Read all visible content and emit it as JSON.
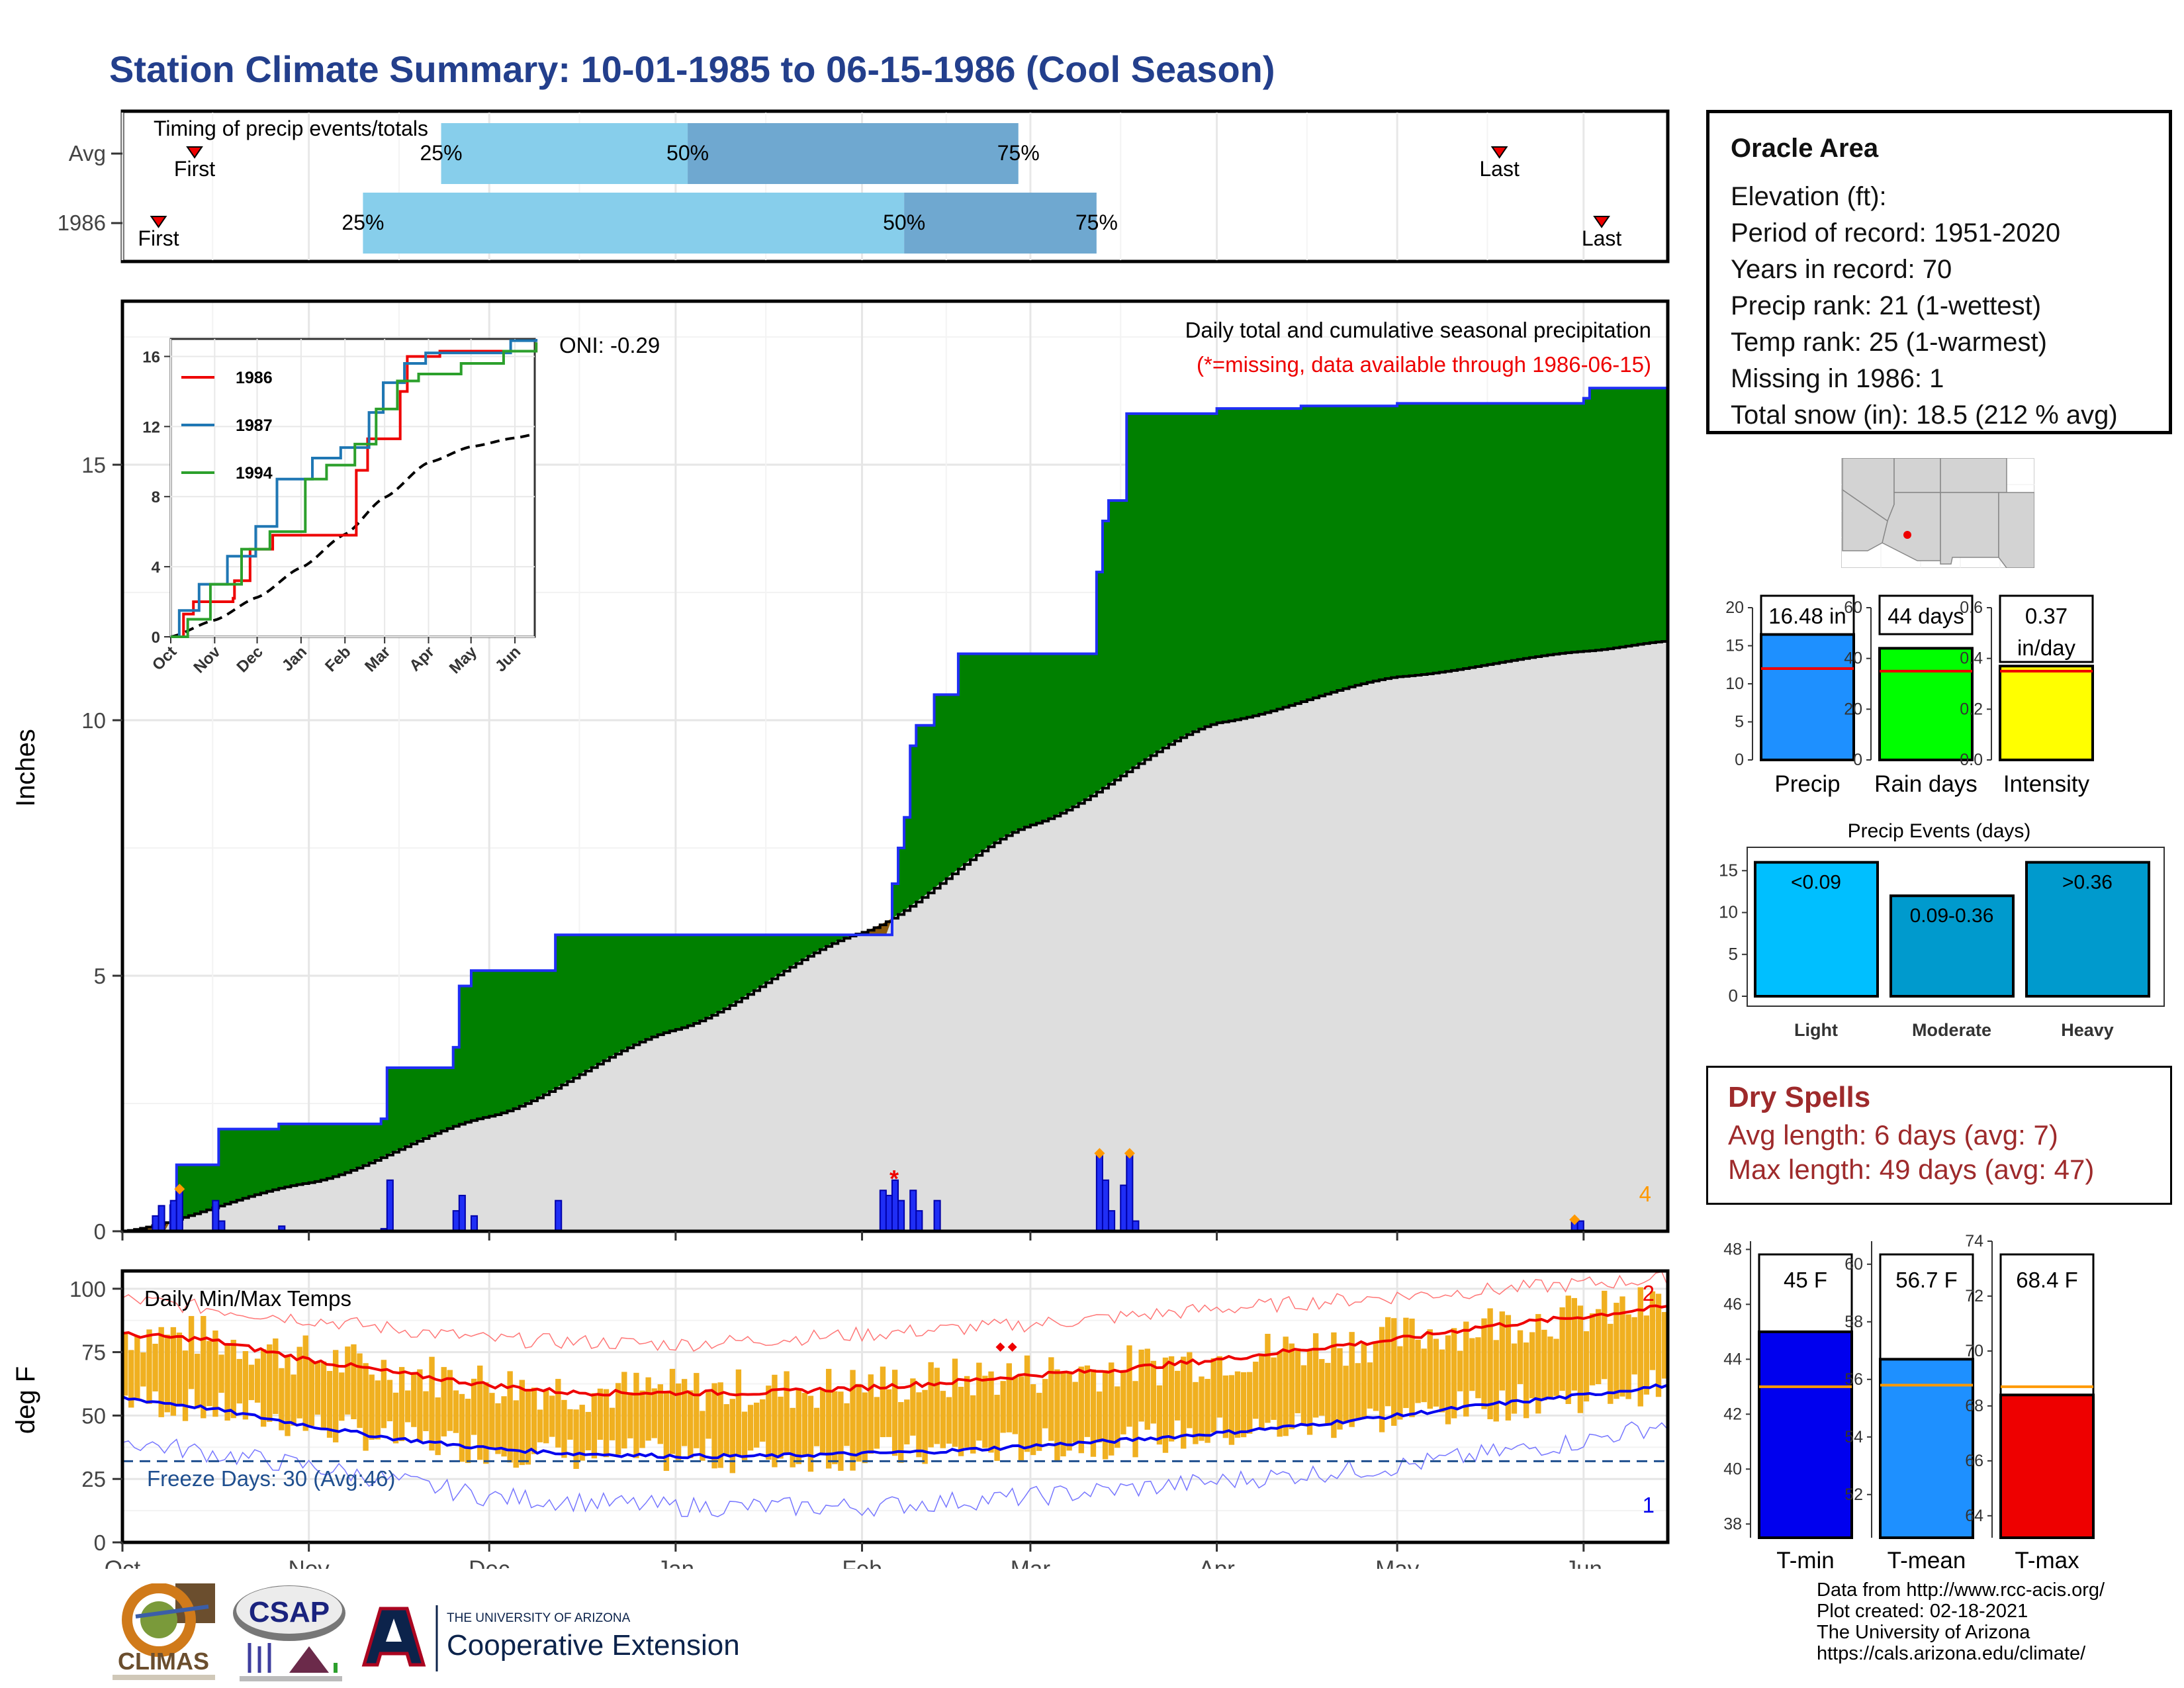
{
  "title": "Station Climate Summary: 10-01-1985 to 06-15-1986 (Cool Season)",
  "colors": {
    "title": "#233f8c",
    "precip_fill": "#008000",
    "deficit_fill": "#8b5a0e",
    "avg_area": "#dedede",
    "bar_blue": "#1f2ef5",
    "q_light": "#87ceeb",
    "q_dark": "#6fa8d0",
    "tmin": "#0000ee",
    "tmax": "#ee0000",
    "range_bar": "#f0b020",
    "bar_precip": "#1e90ff",
    "bar_raindays": "#00ff00",
    "bar_intensity": "#ffff00",
    "bar_light": "#00bfff",
    "bar_moderate": "#009acd",
    "bar_heavy": "#009acd",
    "dry_spell_text": "#9e2a2b"
  },
  "timing": {
    "label": "Timing of precip events/totals",
    "rows": [
      {
        "name": "Avg",
        "first": "First",
        "last": "Last",
        "first_date": "1985-10-13",
        "last_date": "1986-05-18",
        "q25": "1985-11-23",
        "q50": "1986-01-03",
        "q75": "1986-02-27",
        "l25": "25%",
        "l50": "50%",
        "l75": "75%"
      },
      {
        "name": "1986",
        "first": "First",
        "last": "Last",
        "first_date": "1985-10-07",
        "last_date": "1986-06-04",
        "q25": "1985-11-10",
        "q50": "1986-02-08",
        "q75": "1986-03-12",
        "l25": "25%",
        "l50": "50%",
        "l75": "75%"
      }
    ]
  },
  "precip_panel": {
    "ylabel": "Inches",
    "legend_title": "Daily total and cumulative seasonal precipitation",
    "legend_missing": "(*=missing, data available through 1986-06-15)",
    "oni": "ONI: -0.29",
    "corner_label": "4",
    "yticks": [
      "0",
      "5",
      "10",
      "15"
    ]
  },
  "inset": {
    "yticks": [
      "0",
      "4",
      "8",
      "12",
      "16"
    ],
    "xticks": [
      "Oct",
      "Nov",
      "Dec",
      "Jan",
      "Feb",
      "Mar",
      "Apr",
      "May",
      "Jun"
    ],
    "series": [
      {
        "name": "1986",
        "color": "#ee0000"
      },
      {
        "name": "1987",
        "color": "#1f77b4"
      },
      {
        "name": "1994",
        "color": "#2ca02c"
      }
    ]
  },
  "temp_panel": {
    "ylabel": "deg F",
    "label": "Daily Min/Max Temps",
    "freeze_text": "Freeze Days: 30 (Avg:46)",
    "corner_top": "2",
    "corner_bottom": "1",
    "yticks": [
      "0",
      "25",
      "50",
      "75",
      "100"
    ]
  },
  "x_months": [
    "Oct",
    "Nov",
    "Dec",
    "Jan",
    "Feb",
    "Mar",
    "Apr",
    "May",
    "Jun"
  ],
  "station": {
    "name": "Oracle Area",
    "lines": [
      "Elevation (ft):",
      "Period of record: 1951-2020",
      "Years in record: 70",
      "Precip rank: 21 (1-wettest)",
      "Temp rank: 25 (1-warmest)",
      "Missing in 1986: 1",
      "Total snow (in): 18.5 (212 % avg)"
    ]
  },
  "summary_bars": [
    {
      "label": "Precip",
      "value": 16.48,
      "avg": 12.0,
      "text": "16.48 in",
      "ymax": 20,
      "yticks": [
        "0",
        "5",
        "10",
        "15",
        "20"
      ]
    },
    {
      "label": "Rain days",
      "value": 44,
      "avg": 35,
      "text": "44 days",
      "ymax": 60,
      "yticks": [
        "0",
        "20",
        "40",
        "60"
      ]
    },
    {
      "label": "Intensity",
      "value": 0.37,
      "avg": 0.35,
      "text": "0.37",
      "text2": "in/day",
      "ymax": 0.6,
      "yticks": [
        "0.0",
        "0.2",
        "0.4",
        "0.6"
      ]
    }
  ],
  "precip_events": {
    "title": "Precip Events (days)",
    "yticks": [
      "0",
      "5",
      "10",
      "15"
    ],
    "bars": [
      {
        "label": "Light",
        "text": "<0.09",
        "value": 16
      },
      {
        "label": "Moderate",
        "text": "0.09-0.36",
        "value": 12
      },
      {
        "label": "Heavy",
        "text": ">0.36",
        "value": 16
      }
    ]
  },
  "dry_spells": {
    "title": "Dry Spells",
    "avg_line": "Avg length: 6 days (avg: 7)",
    "max_line": "Max length: 49 days (avg: 47)"
  },
  "temp_bars": [
    {
      "label": "T-min",
      "value": 45.0,
      "avg": 43.0,
      "text": "45 F",
      "ymin": 37.5,
      "ymax": 48.3,
      "ticks": [
        38,
        40,
        42,
        44,
        46,
        48
      ]
    },
    {
      "label": "T-mean",
      "value": 56.7,
      "avg": 55.8,
      "text": "56.7 F",
      "ymin": 50.5,
      "ymax": 60.8,
      "ticks": [
        52,
        54,
        56,
        58,
        60
      ]
    },
    {
      "label": "T-max",
      "value": 68.4,
      "avg": 68.7,
      "text": "68.4 F",
      "ymin": 63.2,
      "ymax": 74.0,
      "ticks": [
        64,
        66,
        68,
        70,
        72,
        74
      ]
    }
  ],
  "credits": [
    "Data from http://www.rcc-acis.org/",
    "Plot created: 02-18-2021",
    "The University of Arizona",
    "https://cals.arizona.edu/climate/"
  ],
  "logos": {
    "climas": "CLIMAS",
    "csap": "CSAP",
    "ua_small": "THE UNIVERSITY OF ARIZONA",
    "ua_big": "Cooperative Extension"
  },
  "chart_data": [
    {
      "type": "area",
      "title": "Daily total and cumulative seasonal precipitation",
      "ylabel": "Inches",
      "ylim": [
        0,
        18.2
      ],
      "x_range": [
        "1985-10-01",
        "1986-06-15"
      ],
      "cumulative_steps": [
        [
          "1985-10-01",
          0.0
        ],
        [
          "1985-10-09",
          0.5
        ],
        [
          "1985-10-10",
          1.3
        ],
        [
          "1985-10-16",
          1.3
        ],
        [
          "1985-10-17",
          2.0
        ],
        [
          "1985-10-27",
          2.1
        ],
        [
          "1985-11-13",
          2.2
        ],
        [
          "1985-11-14",
          3.2
        ],
        [
          "1985-11-25",
          3.6
        ],
        [
          "1985-11-26",
          4.8
        ],
        [
          "1985-11-28",
          5.1
        ],
        [
          "1985-12-12",
          5.8
        ],
        [
          "1986-02-05",
          5.8
        ],
        [
          "1986-02-06",
          6.8
        ],
        [
          "1986-02-07",
          7.5
        ],
        [
          "1986-02-08",
          8.1
        ],
        [
          "1986-02-09",
          9.5
        ],
        [
          "1986-02-10",
          9.9
        ],
        [
          "1986-02-13",
          10.5
        ],
        [
          "1986-02-17",
          11.3
        ],
        [
          "1986-03-12",
          12.9
        ],
        [
          "1986-03-13",
          13.9
        ],
        [
          "1986-03-14",
          14.3
        ],
        [
          "1986-03-17",
          16.0
        ],
        [
          "1986-04-01",
          16.1
        ],
        [
          "1986-04-15",
          16.15
        ],
        [
          "1986-05-01",
          16.2
        ],
        [
          "1986-06-01",
          16.3
        ],
        [
          "1986-06-02",
          16.5
        ],
        [
          "1986-06-15",
          16.5
        ]
      ],
      "average_cumulative": [
        [
          "1985-10-01",
          0.0
        ],
        [
          "1985-11-01",
          0.95
        ],
        [
          "1985-12-01",
          2.25
        ],
        [
          "1986-01-01",
          3.95
        ],
        [
          "1986-02-01",
          5.85
        ],
        [
          "1986-03-01",
          7.95
        ],
        [
          "1986-04-01",
          9.95
        ],
        [
          "1986-05-01",
          10.85
        ],
        [
          "1986-06-01",
          11.35
        ],
        [
          "1986-06-15",
          11.55
        ]
      ],
      "daily_bars": [
        [
          "1985-10-06",
          0.3
        ],
        [
          "1985-10-07",
          0.5
        ],
        [
          "1985-10-09",
          0.6
        ],
        [
          "1985-10-10",
          0.8
        ],
        [
          "1985-10-16",
          0.6
        ],
        [
          "1985-10-17",
          0.2
        ],
        [
          "1985-10-27",
          0.1
        ],
        [
          "1985-11-13",
          0.05
        ],
        [
          "1985-11-14",
          1.0
        ],
        [
          "1985-11-25",
          0.4
        ],
        [
          "1985-11-26",
          0.7
        ],
        [
          "1985-11-28",
          0.3
        ],
        [
          "1985-12-12",
          0.6
        ],
        [
          "1986-02-04",
          0.8
        ],
        [
          "1986-02-05",
          0.7
        ],
        [
          "1986-02-06",
          1.0
        ],
        [
          "1986-02-07",
          0.6
        ],
        [
          "1986-02-09",
          0.8
        ],
        [
          "1986-02-10",
          0.4
        ],
        [
          "1986-02-13",
          0.6
        ],
        [
          "1986-03-12",
          1.5
        ],
        [
          "1986-03-13",
          1.0
        ],
        [
          "1986-03-14",
          0.4
        ],
        [
          "1986-03-16",
          0.9
        ],
        [
          "1986-03-17",
          1.5
        ],
        [
          "1986-03-18",
          0.2
        ],
        [
          "1986-05-30",
          0.2
        ],
        [
          "1986-05-31",
          0.2
        ]
      ],
      "missing": [
        "1986-02-06"
      ]
    },
    {
      "type": "line",
      "title": "Daily Min/Max Temps",
      "ylabel": "deg F",
      "ylim": [
        0,
        107
      ],
      "freeze_line": 32,
      "avg_max": [
        [
          "1985-10-01",
          82
        ],
        [
          "1985-10-15",
          80
        ],
        [
          "1985-11-01",
          72
        ],
        [
          "1985-11-15",
          67
        ],
        [
          "1985-12-01",
          62
        ],
        [
          "1985-12-15",
          59
        ],
        [
          "1986-01-01",
          59
        ],
        [
          "1986-01-15",
          59
        ],
        [
          "1986-02-01",
          61
        ],
        [
          "1986-02-15",
          63
        ],
        [
          "1986-03-01",
          66
        ],
        [
          "1986-03-15",
          68
        ],
        [
          "1986-04-01",
          72
        ],
        [
          "1986-04-15",
          76
        ],
        [
          "1986-05-01",
          80
        ],
        [
          "1986-05-15",
          85
        ],
        [
          "1986-06-01",
          89
        ],
        [
          "1986-06-15",
          93
        ]
      ],
      "avg_min": [
        [
          "1985-10-01",
          57
        ],
        [
          "1985-10-15",
          53
        ],
        [
          "1985-11-01",
          46
        ],
        [
          "1985-11-15",
          41
        ],
        [
          "1985-12-01",
          37
        ],
        [
          "1985-12-15",
          35
        ],
        [
          "1986-01-01",
          34
        ],
        [
          "1986-01-15",
          34
        ],
        [
          "1986-02-01",
          35
        ],
        [
          "1986-02-15",
          36
        ],
        [
          "1986-03-01",
          38
        ],
        [
          "1986-03-15",
          40
        ],
        [
          "1986-04-01",
          43
        ],
        [
          "1986-04-15",
          46
        ],
        [
          "1986-05-01",
          50
        ],
        [
          "1986-05-15",
          54
        ],
        [
          "1986-06-01",
          58
        ],
        [
          "1986-06-15",
          62
        ]
      ],
      "record_max": [
        [
          "1985-10-01",
          96
        ],
        [
          "1985-11-01",
          88
        ],
        [
          "1985-12-01",
          80
        ],
        [
          "1986-01-01",
          78
        ],
        [
          "1986-02-01",
          82
        ],
        [
          "1986-03-01",
          86
        ],
        [
          "1986-04-01",
          92
        ],
        [
          "1986-05-01",
          97
        ],
        [
          "1986-06-01",
          102
        ],
        [
          "1986-06-15",
          104
        ]
      ],
      "record_min": [
        [
          "1985-10-01",
          40
        ],
        [
          "1985-11-01",
          30
        ],
        [
          "1985-12-01",
          18
        ],
        [
          "1986-01-01",
          14
        ],
        [
          "1986-02-01",
          14
        ],
        [
          "1986-03-01",
          18
        ],
        [
          "1986-04-01",
          24
        ],
        [
          "1986-05-01",
          30
        ],
        [
          "1986-06-01",
          40
        ],
        [
          "1986-06-15",
          47
        ]
      ]
    }
  ]
}
